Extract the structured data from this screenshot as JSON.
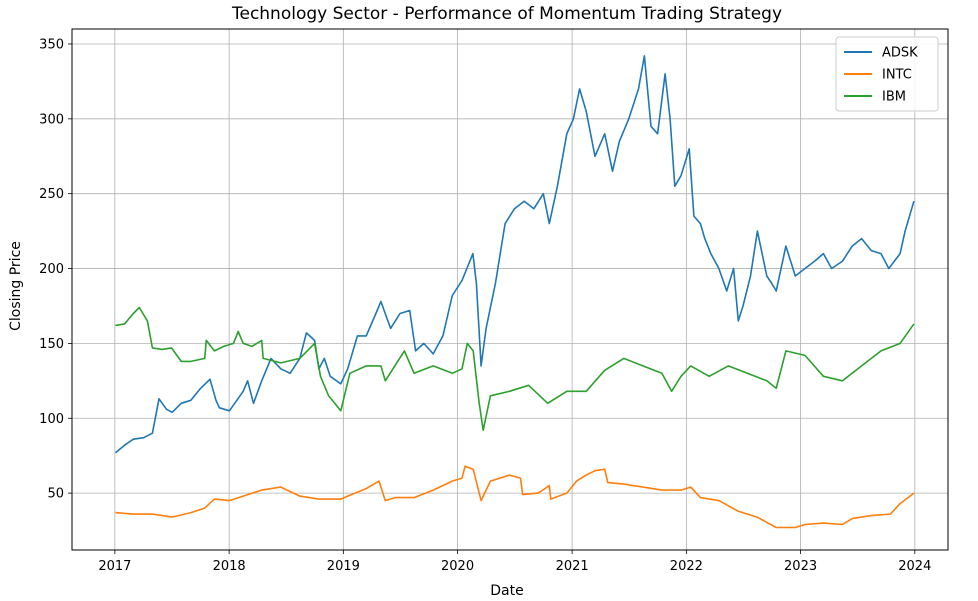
{
  "chart_data": {
    "type": "line",
    "title": "Technology Sector - Performance of Momentum Trading Strategy",
    "xlabel": "Date",
    "ylabel": "Closing Price",
    "x_ticks": [
      "2017",
      "2018",
      "2019",
      "2020",
      "2021",
      "2022",
      "2023",
      "2024"
    ],
    "y_ticks": [
      50,
      100,
      150,
      200,
      250,
      300,
      350
    ],
    "xlim": [
      "2016-08-17",
      "2024-04-16"
    ],
    "ylim": [
      12,
      360
    ],
    "grid": true,
    "legend_position": "top-right",
    "series": [
      {
        "name": "ADSK",
        "color": "#1f77b4",
        "points": [
          [
            "2017-01-03",
            77
          ],
          [
            "2017-02-01",
            82
          ],
          [
            "2017-03-01",
            86
          ],
          [
            "2017-04-03",
            87
          ],
          [
            "2017-05-01",
            90
          ],
          [
            "2017-05-22",
            113
          ],
          [
            "2017-06-15",
            106
          ],
          [
            "2017-07-03",
            104
          ],
          [
            "2017-08-01",
            110
          ],
          [
            "2017-09-01",
            112
          ],
          [
            "2017-10-02",
            120
          ],
          [
            "2017-11-01",
            126
          ],
          [
            "2017-11-20",
            112
          ],
          [
            "2017-12-01",
            107
          ],
          [
            "2018-01-02",
            105
          ],
          [
            "2018-02-15",
            118
          ],
          [
            "2018-03-01",
            125
          ],
          [
            "2018-03-20",
            110
          ],
          [
            "2018-04-15",
            125
          ],
          [
            "2018-05-15",
            140
          ],
          [
            "2018-06-15",
            133
          ],
          [
            "2018-07-15",
            130
          ],
          [
            "2018-08-15",
            140
          ],
          [
            "2018-09-05",
            157
          ],
          [
            "2018-10-01",
            152
          ],
          [
            "2018-10-15",
            133
          ],
          [
            "2018-11-01",
            140
          ],
          [
            "2018-11-20",
            128
          ],
          [
            "2018-12-24",
            123
          ],
          [
            "2019-01-15",
            133
          ],
          [
            "2019-02-15",
            155
          ],
          [
            "2019-03-15",
            155
          ],
          [
            "2019-04-15",
            170
          ],
          [
            "2019-05-01",
            178
          ],
          [
            "2019-06-01",
            160
          ],
          [
            "2019-07-01",
            170
          ],
          [
            "2019-08-01",
            172
          ],
          [
            "2019-08-20",
            145
          ],
          [
            "2019-09-15",
            150
          ],
          [
            "2019-10-15",
            143
          ],
          [
            "2019-11-15",
            155
          ],
          [
            "2019-12-15",
            182
          ],
          [
            "2020-01-15",
            192
          ],
          [
            "2020-02-19",
            210
          ],
          [
            "2020-03-01",
            190
          ],
          [
            "2020-03-16",
            135
          ],
          [
            "2020-04-01",
            160
          ],
          [
            "2020-05-01",
            190
          ],
          [
            "2020-06-01",
            230
          ],
          [
            "2020-07-01",
            240
          ],
          [
            "2020-08-01",
            245
          ],
          [
            "2020-09-01",
            240
          ],
          [
            "2020-10-01",
            250
          ],
          [
            "2020-10-20",
            230
          ],
          [
            "2020-11-15",
            255
          ],
          [
            "2020-12-15",
            290
          ],
          [
            "2021-01-05",
            300
          ],
          [
            "2021-01-25",
            320
          ],
          [
            "2021-02-15",
            305
          ],
          [
            "2021-03-15",
            275
          ],
          [
            "2021-04-15",
            290
          ],
          [
            "2021-05-10",
            265
          ],
          [
            "2021-06-01",
            285
          ],
          [
            "2021-07-01",
            300
          ],
          [
            "2021-08-01",
            320
          ],
          [
            "2021-08-20",
            342
          ],
          [
            "2021-09-10",
            295
          ],
          [
            "2021-10-01",
            290
          ],
          [
            "2021-10-25",
            330
          ],
          [
            "2021-11-10",
            300
          ],
          [
            "2021-11-25",
            255
          ],
          [
            "2021-12-15",
            262
          ],
          [
            "2022-01-10",
            280
          ],
          [
            "2022-01-25",
            235
          ],
          [
            "2022-02-15",
            230
          ],
          [
            "2022-03-01",
            220
          ],
          [
            "2022-03-20",
            210
          ],
          [
            "2022-04-15",
            200
          ],
          [
            "2022-05-10",
            185
          ],
          [
            "2022-06-01",
            200
          ],
          [
            "2022-06-16",
            165
          ],
          [
            "2022-07-01",
            175
          ],
          [
            "2022-07-25",
            195
          ],
          [
            "2022-08-16",
            225
          ],
          [
            "2022-09-15",
            195
          ],
          [
            "2022-10-01",
            190
          ],
          [
            "2022-10-15",
            185
          ],
          [
            "2022-11-15",
            215
          ],
          [
            "2022-12-15",
            195
          ],
          [
            "2023-01-15",
            200
          ],
          [
            "2023-02-15",
            205
          ],
          [
            "2023-03-15",
            210
          ],
          [
            "2023-04-10",
            200
          ],
          [
            "2023-05-15",
            205
          ],
          [
            "2023-06-15",
            215
          ],
          [
            "2023-07-15",
            220
          ],
          [
            "2023-08-15",
            212
          ],
          [
            "2023-09-15",
            210
          ],
          [
            "2023-10-10",
            200
          ],
          [
            "2023-11-15",
            210
          ],
          [
            "2023-12-01",
            225
          ],
          [
            "2023-12-29",
            245
          ]
        ]
      },
      {
        "name": "INTC",
        "color": "#ff7f0e",
        "points": [
          [
            "2017-01-03",
            37
          ],
          [
            "2017-03-01",
            36
          ],
          [
            "2017-05-01",
            36
          ],
          [
            "2017-07-03",
            34
          ],
          [
            "2017-09-01",
            37
          ],
          [
            "2017-10-15",
            40
          ],
          [
            "2017-11-15",
            46
          ],
          [
            "2018-01-02",
            45
          ],
          [
            "2018-02-15",
            48
          ],
          [
            "2018-04-15",
            52
          ],
          [
            "2018-06-15",
            54
          ],
          [
            "2018-08-15",
            48
          ],
          [
            "2018-10-15",
            46
          ],
          [
            "2018-12-24",
            46
          ],
          [
            "2019-01-15",
            48
          ],
          [
            "2019-03-15",
            53
          ],
          [
            "2019-04-25",
            58
          ],
          [
            "2019-05-15",
            45
          ],
          [
            "2019-06-15",
            47
          ],
          [
            "2019-08-15",
            47
          ],
          [
            "2019-10-15",
            52
          ],
          [
            "2019-12-15",
            58
          ],
          [
            "2020-01-15",
            60
          ],
          [
            "2020-01-25",
            68
          ],
          [
            "2020-02-20",
            66
          ],
          [
            "2020-03-16",
            45
          ],
          [
            "2020-04-15",
            58
          ],
          [
            "2020-06-15",
            62
          ],
          [
            "2020-07-20",
            60
          ],
          [
            "2020-07-27",
            49
          ],
          [
            "2020-09-15",
            50
          ],
          [
            "2020-10-20",
            55
          ],
          [
            "2020-10-25",
            46
          ],
          [
            "2020-12-15",
            50
          ],
          [
            "2021-01-15",
            58
          ],
          [
            "2021-02-15",
            62
          ],
          [
            "2021-03-15",
            65
          ],
          [
            "2021-04-15",
            66
          ],
          [
            "2021-04-25",
            57
          ],
          [
            "2021-06-15",
            56
          ],
          [
            "2021-08-15",
            54
          ],
          [
            "2021-10-15",
            52
          ],
          [
            "2021-12-15",
            52
          ],
          [
            "2022-01-15",
            54
          ],
          [
            "2022-02-15",
            47
          ],
          [
            "2022-04-15",
            45
          ],
          [
            "2022-06-15",
            38
          ],
          [
            "2022-08-15",
            34
          ],
          [
            "2022-10-15",
            27
          ],
          [
            "2022-12-15",
            27
          ],
          [
            "2023-01-15",
            29
          ],
          [
            "2023-03-15",
            30
          ],
          [
            "2023-05-15",
            29
          ],
          [
            "2023-06-15",
            33
          ],
          [
            "2023-08-15",
            35
          ],
          [
            "2023-10-15",
            36
          ],
          [
            "2023-11-15",
            43
          ],
          [
            "2023-12-29",
            50
          ]
        ]
      },
      {
        "name": "IBM",
        "color": "#2ca02c",
        "points": [
          [
            "2017-01-03",
            162
          ],
          [
            "2017-02-01",
            163
          ],
          [
            "2017-03-01",
            170
          ],
          [
            "2017-03-20",
            174
          ],
          [
            "2017-04-15",
            165
          ],
          [
            "2017-05-01",
            147
          ],
          [
            "2017-06-01",
            146
          ],
          [
            "2017-07-01",
            147
          ],
          [
            "2017-08-01",
            138
          ],
          [
            "2017-09-01",
            138
          ],
          [
            "2017-10-15",
            140
          ],
          [
            "2017-10-20",
            152
          ],
          [
            "2017-11-15",
            145
          ],
          [
            "2017-12-15",
            148
          ],
          [
            "2018-01-15",
            150
          ],
          [
            "2018-01-30",
            158
          ],
          [
            "2018-02-15",
            150
          ],
          [
            "2018-03-15",
            148
          ],
          [
            "2018-04-15",
            152
          ],
          [
            "2018-04-20",
            140
          ],
          [
            "2018-06-15",
            137
          ],
          [
            "2018-08-15",
            140
          ],
          [
            "2018-10-01",
            150
          ],
          [
            "2018-10-20",
            128
          ],
          [
            "2018-11-15",
            115
          ],
          [
            "2018-12-24",
            105
          ],
          [
            "2019-01-22",
            130
          ],
          [
            "2019-03-15",
            135
          ],
          [
            "2019-05-01",
            135
          ],
          [
            "2019-05-15",
            125
          ],
          [
            "2019-07-15",
            145
          ],
          [
            "2019-08-15",
            130
          ],
          [
            "2019-10-15",
            135
          ],
          [
            "2019-12-15",
            130
          ],
          [
            "2020-01-15",
            133
          ],
          [
            "2020-02-01",
            150
          ],
          [
            "2020-02-20",
            145
          ],
          [
            "2020-03-10",
            110
          ],
          [
            "2020-03-23",
            92
          ],
          [
            "2020-04-15",
            115
          ],
          [
            "2020-06-15",
            118
          ],
          [
            "2020-08-15",
            122
          ],
          [
            "2020-10-15",
            110
          ],
          [
            "2020-12-15",
            118
          ],
          [
            "2021-02-15",
            118
          ],
          [
            "2021-04-15",
            132
          ],
          [
            "2021-06-15",
            140
          ],
          [
            "2021-08-15",
            135
          ],
          [
            "2021-10-15",
            130
          ],
          [
            "2021-11-15",
            118
          ],
          [
            "2021-12-15",
            128
          ],
          [
            "2022-01-15",
            135
          ],
          [
            "2022-03-15",
            128
          ],
          [
            "2022-05-15",
            135
          ],
          [
            "2022-07-15",
            130
          ],
          [
            "2022-09-15",
            125
          ],
          [
            "2022-10-15",
            120
          ],
          [
            "2022-11-15",
            145
          ],
          [
            "2023-01-15",
            142
          ],
          [
            "2023-03-15",
            128
          ],
          [
            "2023-05-15",
            125
          ],
          [
            "2023-07-15",
            135
          ],
          [
            "2023-09-15",
            145
          ],
          [
            "2023-11-15",
            150
          ],
          [
            "2023-12-29",
            163
          ]
        ]
      }
    ]
  }
}
